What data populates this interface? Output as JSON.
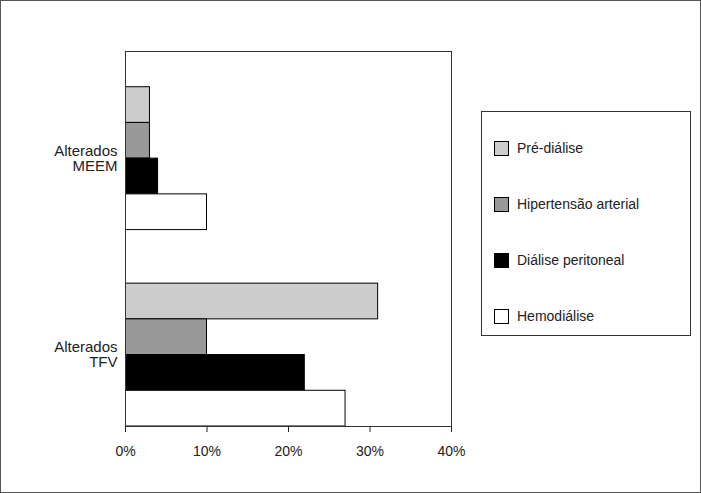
{
  "chart_data": {
    "type": "bar",
    "orientation": "horizontal",
    "categories": [
      "Alterados MEEM",
      "Alterados TFV"
    ],
    "series": [
      {
        "name": "Pré-diálise",
        "color": "#cccccc",
        "values": [
          3,
          31
        ]
      },
      {
        "name": "Hipertensão arterial",
        "color": "#999999",
        "values": [
          3,
          10
        ]
      },
      {
        "name": "Diálise peritoneal",
        "color": "#000000",
        "values": [
          4,
          22
        ]
      },
      {
        "name": "Hemodiálise",
        "color": "#ffffff",
        "values": [
          10,
          27
        ]
      }
    ],
    "xlim": [
      0,
      40
    ],
    "xticks": [
      {
        "value": 0,
        "label": "0%"
      },
      {
        "value": 10,
        "label": "10%"
      },
      {
        "value": 20,
        "label": "20%"
      },
      {
        "value": 30,
        "label": "30%"
      },
      {
        "value": 40,
        "label": "40%"
      }
    ],
    "legend": "right"
  }
}
